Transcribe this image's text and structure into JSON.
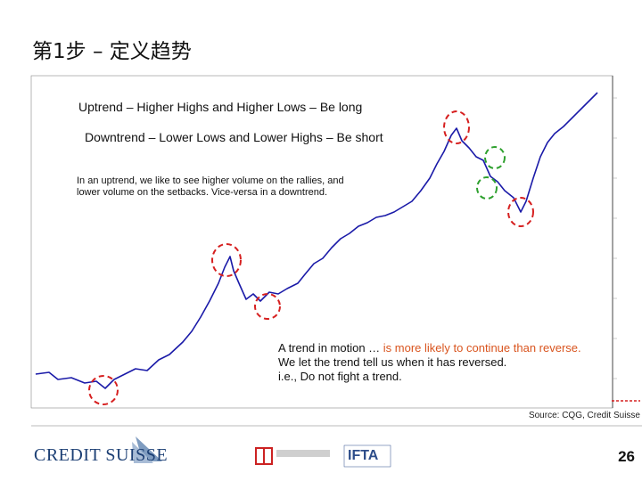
{
  "header": {
    "title": "第1步 – 定义趋势"
  },
  "annotations": {
    "uptrend": "Uptrend – Higher Highs and Higher Lows – Be long",
    "downtrend": "Downtrend – Lower Lows and Lower Highs – Be short",
    "volume_lines": [
      "In an uptrend, we like to see higher volume on the rallies, and",
      "lower volume on the setbacks.  Vice-versa in a downtrend."
    ],
    "trend_motion_a": "A trend in motion …",
    "trend_motion_b": "is more likely to continue than reverse.",
    "trend_reversed": "We let the trend tell us when it has reversed.",
    "dont_fight": "i.e., Do not fight a trend."
  },
  "source": "Source: CQG, Credit Suisse",
  "footer": {
    "logo": "CREDIT SUISSE",
    "partner": "IFTA",
    "page": "26"
  }
}
